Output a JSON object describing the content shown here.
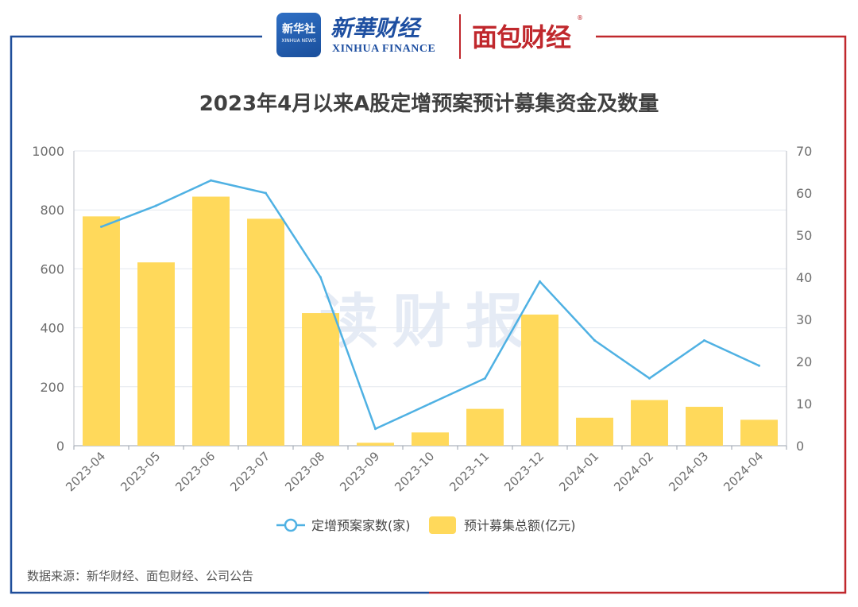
{
  "brand": {
    "xinhua_badge_main": "新华社",
    "xinhua_badge_sub": "XINHUA NEWS",
    "xinhua_name": "新華财经",
    "xinhua_name_en": "XINHUA FINANCE",
    "partner_name": "面包财经",
    "partner_mark": "®"
  },
  "watermark": "读财报",
  "source": "数据来源：新华财经、面包财经、公司公告",
  "colors": {
    "bar": "#FFD95B",
    "line": "#4FB1E3",
    "frame_left": "#1F4E9A",
    "frame_right": "#C0282D"
  },
  "chart_data": {
    "type": "bar",
    "title": "2023年4月以来A股定增预案预计募集资金及数量",
    "categories": [
      "2023-04",
      "2023-05",
      "2023-06",
      "2023-07",
      "2023-08",
      "2023-09",
      "2023-10",
      "2023-11",
      "2023-12",
      "2024-01",
      "2024-02",
      "2024-03",
      "2024-04"
    ],
    "y_left": {
      "min": 0,
      "max": 1000,
      "ticks": [
        0,
        200,
        400,
        600,
        800,
        1000
      ]
    },
    "y_right": {
      "min": 0,
      "max": 70,
      "ticks": [
        0,
        10,
        20,
        30,
        40,
        50,
        60,
        70
      ]
    },
    "series": [
      {
        "name": "定增预案家数(家)",
        "type": "line",
        "axis": "right",
        "values": [
          52,
          57,
          63,
          60,
          40,
          4,
          10,
          16,
          39,
          25,
          16,
          25,
          19
        ]
      },
      {
        "name": "预计募集总额(亿元)",
        "type": "bar",
        "axis": "left",
        "values": [
          778,
          622,
          845,
          770,
          450,
          10,
          45,
          125,
          445,
          95,
          155,
          132,
          88
        ]
      }
    ],
    "legend_position": "bottom",
    "grid": true
  }
}
